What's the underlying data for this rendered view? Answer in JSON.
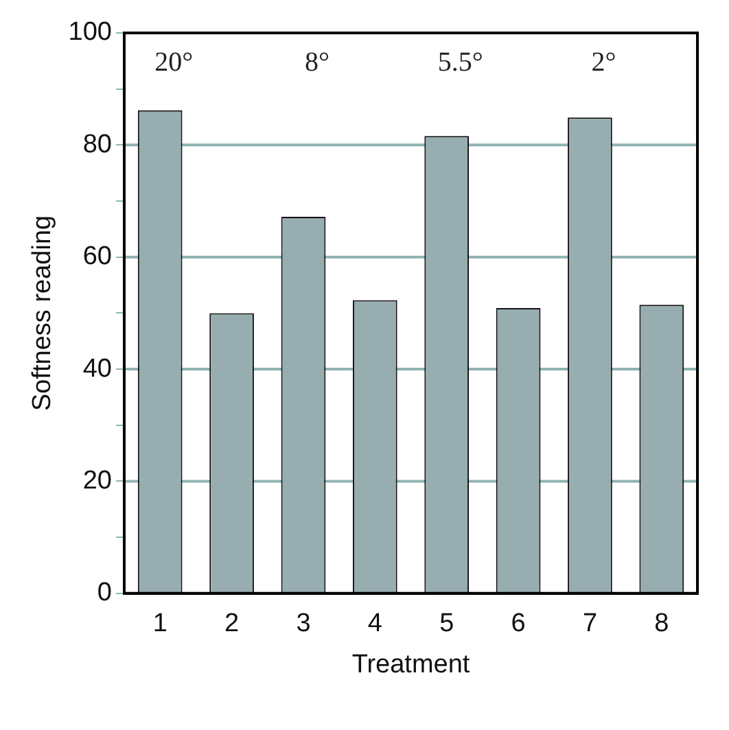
{
  "chart_data": {
    "type": "bar",
    "xlabel": "Treatment",
    "ylabel": "Softness reading",
    "categories": [
      "1",
      "2",
      "3",
      "4",
      "5",
      "6",
      "7",
      "8"
    ],
    "values": [
      86.2,
      50.0,
      67.2,
      52.3,
      81.6,
      50.9,
      84.9,
      51.5
    ],
    "color": "#98adb0",
    "ylim": [
      0,
      100
    ],
    "yticks": [
      0,
      {
        "value": 10,
        "label": null
      },
      20,
      {
        "value": 30,
        "label": null
      },
      40,
      {
        "value": 50,
        "label": null
      },
      60,
      {
        "value": 70,
        "label": null
      },
      80,
      {
        "value": 90,
        "label": null
      },
      100
    ],
    "grid": "y",
    "annotations": [
      "20°",
      "8°",
      "5.5°",
      "2°"
    ]
  }
}
